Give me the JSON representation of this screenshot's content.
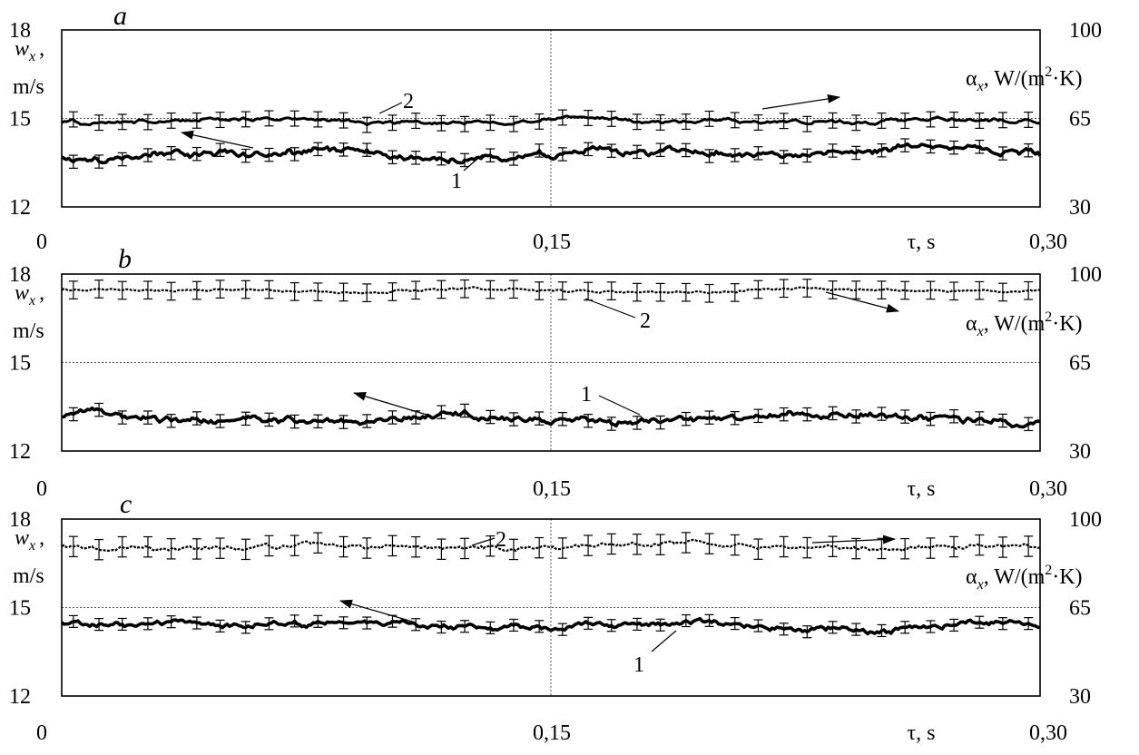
{
  "chart_data": [
    {
      "type": "line",
      "panel_label": "a",
      "x_ticks": [
        "0",
        "0,15",
        "0,30"
      ],
      "x_label": "τ, s",
      "xlim": [
        0,
        0.3
      ],
      "left_axis": {
        "ticks": [
          "18",
          "15",
          "12"
        ],
        "label_main": "w",
        "label_sub": "x",
        "label_tail": ",",
        "label_unit": "m/s",
        "ylim": [
          12,
          18
        ]
      },
      "right_axis": {
        "ticks": [
          "100",
          "65",
          "30"
        ],
        "label_main": "α",
        "label_sub": "x",
        "label_mid": ", W/(m",
        "label_sup": "2",
        "label_end": "·K)",
        "ylim": [
          30,
          100
        ]
      },
      "grid": {
        "horizontal_at_left": [
          18,
          15
        ],
        "vertical_at_x": [
          0.15
        ]
      },
      "series": [
        {
          "name": "1",
          "axis": "left",
          "mean": 13.8,
          "amplitude": 0.28,
          "error": 0.22,
          "style": "thick"
        },
        {
          "name": "2",
          "axis": "right",
          "mean": 64.0,
          "amplitude": 1.8,
          "error": 3.0,
          "style": "solid"
        }
      ]
    },
    {
      "type": "line",
      "panel_label": "b",
      "x_ticks": [
        "0",
        "0,15",
        "0,30"
      ],
      "x_label": "τ, s",
      "xlim": [
        0,
        0.3
      ],
      "left_axis": {
        "ticks": [
          "18",
          "15",
          "12"
        ],
        "label_main": "w",
        "label_sub": "x",
        "label_tail": ",",
        "label_unit": "m/s",
        "ylim": [
          12,
          18
        ]
      },
      "right_axis": {
        "ticks": [
          "100",
          "65",
          "30"
        ],
        "label_main": "α",
        "label_sub": "x",
        "label_mid": ", W/(m",
        "label_sup": "2",
        "label_end": "·K)",
        "ylim": [
          30,
          100
        ]
      },
      "grid": {
        "horizontal_at_left": [
          18,
          15
        ],
        "vertical_at_x": [
          0.15
        ]
      },
      "series": [
        {
          "name": "1",
          "axis": "left",
          "mean": 13.15,
          "amplitude": 0.28,
          "error": 0.22,
          "style": "thick"
        },
        {
          "name": "2",
          "axis": "right",
          "mean": 93.5,
          "amplitude": 1.2,
          "error": 3.5,
          "style": "dashed"
        }
      ]
    },
    {
      "type": "line",
      "panel_label": "c",
      "x_ticks": [
        "0",
        "0,15",
        "0,30"
      ],
      "x_label": "τ, s",
      "xlim": [
        0,
        0.3
      ],
      "left_axis": {
        "ticks": [
          "18",
          "15",
          "12"
        ],
        "label_main": "w",
        "label_sub": "x",
        "label_tail": ",",
        "label_unit": "m/s",
        "ylim": [
          12,
          18
        ]
      },
      "right_axis": {
        "ticks": [
          "100",
          "65",
          "30"
        ],
        "label_main": "α",
        "label_sub": "x",
        "label_mid": ", W/(m",
        "label_sup": "2",
        "label_end": "·K)",
        "ylim": [
          30,
          100
        ]
      },
      "grid": {
        "horizontal_at_left": [
          18,
          15
        ],
        "vertical_at_x": [
          0.15
        ]
      },
      "series": [
        {
          "name": "1",
          "axis": "left",
          "mean": 14.4,
          "amplitude": 0.22,
          "error": 0.2,
          "style": "thick"
        },
        {
          "name": "2",
          "axis": "right",
          "mean": 89.0,
          "amplitude": 2.2,
          "error": 4.0,
          "style": "dashed"
        }
      ]
    }
  ]
}
